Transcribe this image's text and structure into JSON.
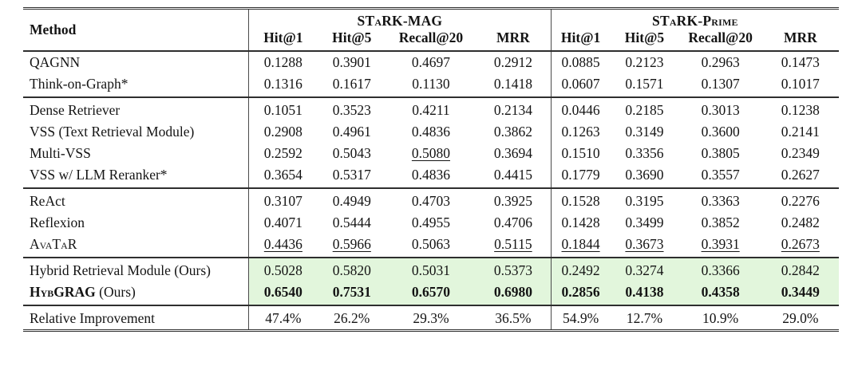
{
  "colors": {
    "highlight": "#e2f6dc",
    "rule": "#2e2e2e",
    "text": "#141414"
  },
  "header": {
    "method": "Method",
    "groups": [
      {
        "label": "STaRK-MAG",
        "metrics": [
          "Hit@1",
          "Hit@5",
          "Recall@20",
          "MRR"
        ]
      },
      {
        "label": "STaRK-Prime",
        "metrics": [
          "Hit@1",
          "Hit@5",
          "Recall@20",
          "MRR"
        ]
      }
    ]
  },
  "body": {
    "groups": [
      {
        "rows": [
          {
            "method": "QAGNN",
            "sc": false,
            "method_bold": false,
            "method_suffix": "",
            "bold": false,
            "highlight": false,
            "underline": [],
            "values": [
              "0.1288",
              "0.3901",
              "0.4697",
              "0.2912",
              "0.0885",
              "0.2123",
              "0.2963",
              "0.1473"
            ]
          },
          {
            "method": "Think-on-Graph*",
            "sc": false,
            "method_bold": false,
            "method_suffix": "",
            "bold": false,
            "highlight": false,
            "underline": [],
            "values": [
              "0.1316",
              "0.1617",
              "0.1130",
              "0.1418",
              "0.0607",
              "0.1571",
              "0.1307",
              "0.1017"
            ]
          }
        ]
      },
      {
        "rows": [
          {
            "method": "Dense Retriever",
            "sc": false,
            "method_bold": false,
            "method_suffix": "",
            "bold": false,
            "highlight": false,
            "underline": [],
            "values": [
              "0.1051",
              "0.3523",
              "0.4211",
              "0.2134",
              "0.0446",
              "0.2185",
              "0.3013",
              "0.1238"
            ]
          },
          {
            "method": "VSS (Text Retrieval Module)",
            "sc": false,
            "method_bold": false,
            "method_suffix": "",
            "bold": false,
            "highlight": false,
            "underline": [],
            "values": [
              "0.2908",
              "0.4961",
              "0.4836",
              "0.3862",
              "0.1263",
              "0.3149",
              "0.3600",
              "0.2141"
            ]
          },
          {
            "method": "Multi-VSS",
            "sc": false,
            "method_bold": false,
            "method_suffix": "",
            "bold": false,
            "highlight": false,
            "underline": [
              2
            ],
            "values": [
              "0.2592",
              "0.5043",
              "0.5080",
              "0.3694",
              "0.1510",
              "0.3356",
              "0.3805",
              "0.2349"
            ]
          },
          {
            "method": "VSS w/ LLM Reranker*",
            "sc": false,
            "method_bold": false,
            "method_suffix": "",
            "bold": false,
            "highlight": false,
            "underline": [],
            "values": [
              "0.3654",
              "0.5317",
              "0.4836",
              "0.4415",
              "0.1779",
              "0.3690",
              "0.3557",
              "0.2627"
            ]
          }
        ]
      },
      {
        "rows": [
          {
            "method": "ReAct",
            "sc": false,
            "method_bold": false,
            "method_suffix": "",
            "bold": false,
            "highlight": false,
            "underline": [],
            "values": [
              "0.3107",
              "0.4949",
              "0.4703",
              "0.3925",
              "0.1528",
              "0.3195",
              "0.3363",
              "0.2276"
            ]
          },
          {
            "method": "Reflexion",
            "sc": false,
            "method_bold": false,
            "method_suffix": "",
            "bold": false,
            "highlight": false,
            "underline": [],
            "values": [
              "0.4071",
              "0.5444",
              "0.4955",
              "0.4706",
              "0.1428",
              "0.3499",
              "0.3852",
              "0.2482"
            ]
          },
          {
            "method": "AvaTaR",
            "sc": true,
            "method_bold": false,
            "method_suffix": "",
            "bold": false,
            "highlight": false,
            "underline": [
              0,
              1,
              3,
              4,
              5,
              6,
              7
            ],
            "values": [
              "0.4436",
              "0.5966",
              "0.5063",
              "0.5115",
              "0.1844",
              "0.3673",
              "0.3931",
              "0.2673"
            ]
          }
        ]
      },
      {
        "rows": [
          {
            "method": "Hybrid Retrieval Module (Ours)",
            "sc": false,
            "method_bold": false,
            "method_suffix": "",
            "bold": false,
            "highlight": true,
            "underline": [],
            "values": [
              "0.5028",
              "0.5820",
              "0.5031",
              "0.5373",
              "0.2492",
              "0.3274",
              "0.3366",
              "0.2842"
            ]
          },
          {
            "method": "HybGRAG",
            "sc": true,
            "method_bold": true,
            "method_suffix": " (Ours)",
            "bold": true,
            "highlight": true,
            "underline": [],
            "values": [
              "0.6540",
              "0.7531",
              "0.6570",
              "0.6980",
              "0.2856",
              "0.4138",
              "0.4358",
              "0.3449"
            ]
          }
        ]
      },
      {
        "rows": [
          {
            "method": "Relative Improvement",
            "sc": false,
            "method_bold": false,
            "method_suffix": "",
            "bold": false,
            "highlight": false,
            "underline": [],
            "values": [
              "47.4%",
              "26.2%",
              "29.3%",
              "36.5%",
              "54.9%",
              "12.7%",
              "10.9%",
              "29.0%"
            ]
          }
        ]
      }
    ]
  }
}
